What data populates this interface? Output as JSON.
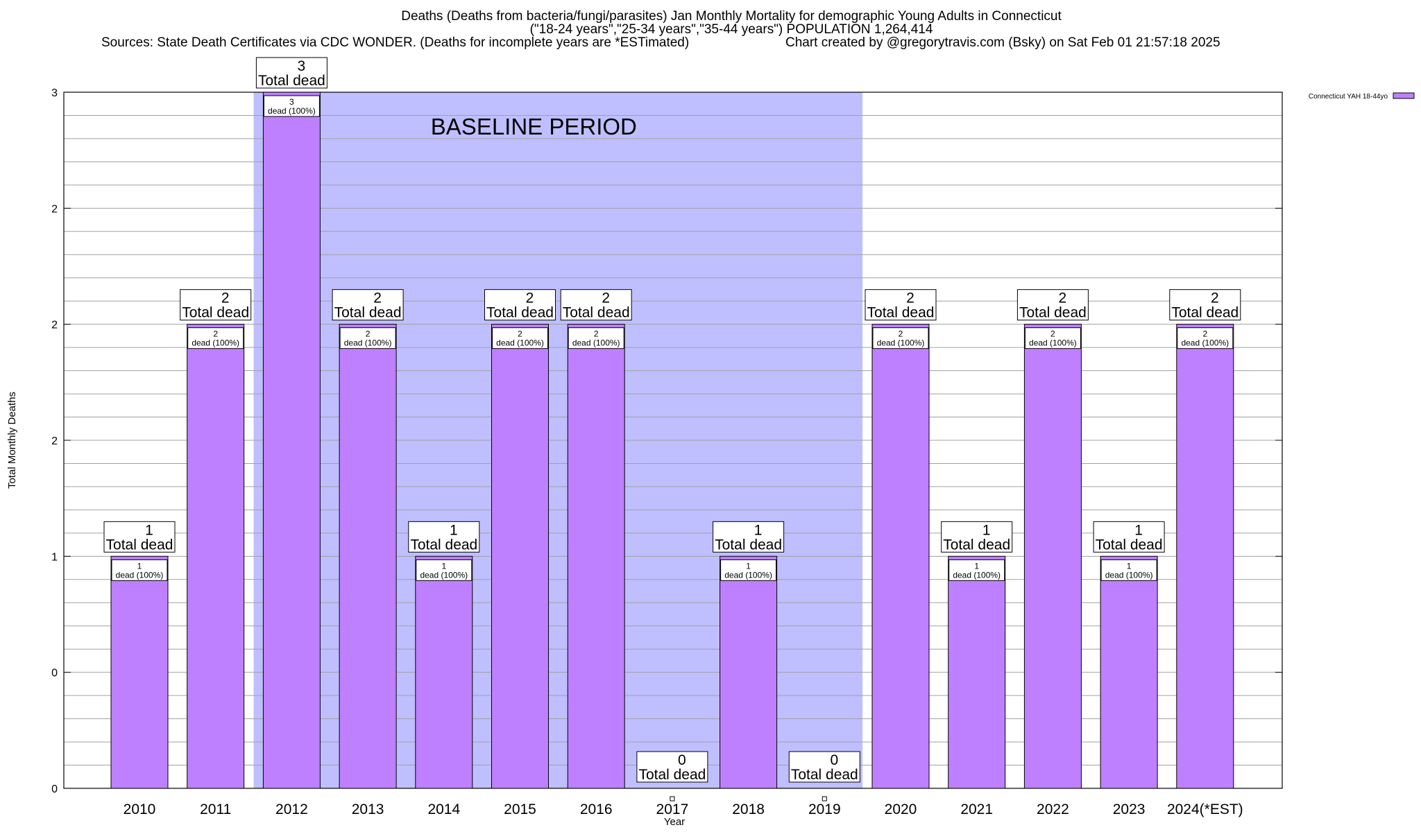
{
  "title": {
    "line1": "Deaths (Deaths from bacteria/fungi/parasites) Jan Monthly Mortality for demographic Young Adults in Connecticut",
    "line2": "(\"18-24 years\",\"25-34 years\",\"35-44 years\") POPULATION 1,264,414",
    "sources": "Sources: State Death Certificates via CDC WONDER. (Deaths for incomplete years are *ESTimated)",
    "credit": "Chart created by @gregorytravis.com (Bsky) on Sat Feb 01 21:57:18 2025"
  },
  "chart_data": {
    "type": "bar",
    "categories": [
      "2010",
      "2011",
      "2012",
      "2013",
      "2014",
      "2015",
      "2016",
      "2017",
      "2018",
      "2019",
      "2020",
      "2021",
      "2022",
      "2023",
      "2024(*EST)"
    ],
    "series": [
      {
        "name": "Connecticut YAH 18-44yo",
        "values": [
          1,
          2,
          3,
          2,
          1,
          2,
          2,
          0,
          1,
          0,
          2,
          1,
          2,
          1,
          2
        ]
      }
    ],
    "xlabel": "Year",
    "ylabel": "Total Monthly Deaths",
    "ylim": [
      0,
      3
    ],
    "ytick_labels": [
      "0",
      "0",
      "1",
      "2",
      "2",
      "2",
      "3"
    ],
    "grid": true,
    "legend": "top-right",
    "baseline": {
      "label": "BASELINE PERIOD",
      "from": "2012",
      "to": "2019"
    },
    "top_label_suffix": "Total dead",
    "inner_label_suffix": "dead (100%)"
  },
  "colors": {
    "bar_fill": "#bf80ff",
    "bar_stroke": "#000000",
    "baseline_fill": "#bfbfff",
    "grid": "#a0a0a0"
  }
}
